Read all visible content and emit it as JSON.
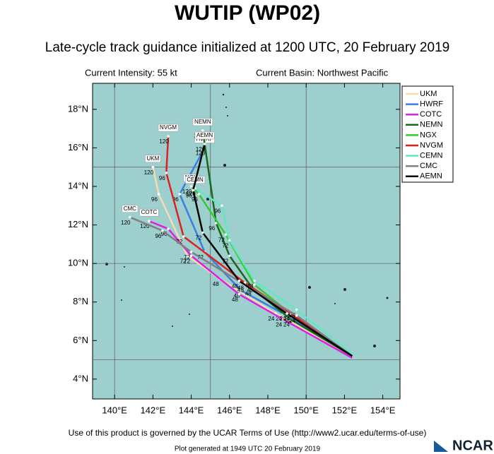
{
  "chart_data": {
    "type": "track",
    "title": "WUTIP (WP02)",
    "subtitle": "Late-cycle track guidance initialized at 1200 UTC, 20 February 2019",
    "current_intensity": "Current Intensity: 55 kt",
    "current_basin": "Current Basin: Northwest Pacific",
    "footer": "Use of this product is governed by the UCAR Terms of Use (http://www2.ucar.edu/terms-of-use)",
    "generated": "Plot generated at 1949 UTC  20 February 2019",
    "logo": "NCAR",
    "xlim": [
      138.85,
      154.9
    ],
    "ylim": [
      2.97,
      19.35
    ],
    "xticks": [
      {
        "value": 140,
        "label": "140°E"
      },
      {
        "value": 142,
        "label": "142°E"
      },
      {
        "value": 144,
        "label": "144°E"
      },
      {
        "value": 146,
        "label": "146°E"
      },
      {
        "value": 148,
        "label": "148°E"
      },
      {
        "value": 150,
        "label": "150°E"
      },
      {
        "value": 152,
        "label": "152°E"
      },
      {
        "value": 154,
        "label": "154°E"
      }
    ],
    "yticks": [
      {
        "value": 4,
        "label": "4°N"
      },
      {
        "value": 6,
        "label": "6°N"
      },
      {
        "value": 8,
        "label": "8°N"
      },
      {
        "value": 10,
        "label": "10°N"
      },
      {
        "value": 12,
        "label": "12°N"
      },
      {
        "value": 14,
        "label": "14°N"
      },
      {
        "value": 16,
        "label": "16°N"
      },
      {
        "value": 18,
        "label": "18°N"
      }
    ],
    "xgrid": [
      140,
      145,
      150
    ],
    "ygrid": [
      5,
      10,
      15
    ],
    "hours": [
      24,
      48,
      72,
      96,
      120
    ],
    "series": [
      {
        "name": "UKM",
        "color": "#f2dcb0",
        "x": [
          152.4,
          148.4,
          145.5,
          143.8,
          142.3,
          142.0
        ],
        "values": [
          5.2,
          7.4,
          9.2,
          10.4,
          13.6,
          15.0
        ]
      },
      {
        "name": "HWRF",
        "color": "#3a80e0",
        "x": [
          152.4,
          148.8,
          146.6,
          144.7,
          143.4,
          144.7
        ],
        "values": [
          5.2,
          7.4,
          8.6,
          10.6,
          13.6,
          16.0
        ]
      },
      {
        "name": "COTC",
        "color": "#e020e0",
        "x": [
          152.4,
          148.8,
          146.5,
          144.0,
          142.8,
          141.8
        ],
        "values": [
          5.1,
          7.1,
          8.4,
          10.4,
          11.8,
          12.2
        ]
      },
      {
        "name": "NEMN",
        "color": "#1a661a",
        "x": [
          152.4,
          149.2,
          147.2,
          146.0,
          145.3,
          144.6
        ],
        "values": [
          5.2,
          7.1,
          8.7,
          10.4,
          12.1,
          16.9
        ]
      },
      {
        "name": "NGX",
        "color": "#33cc33",
        "x": [
          152.4,
          149.3,
          147.3,
          145.8,
          144.4,
          144.0
        ],
        "values": [
          5.2,
          7.3,
          8.9,
          11.5,
          13.6,
          14.0
        ]
      },
      {
        "name": "NVGM",
        "color": "#e02020",
        "x": [
          152.4,
          149.2,
          146.8,
          143.6,
          142.7,
          142.8
        ],
        "values": [
          5.2,
          7.4,
          9.0,
          11.4,
          14.7,
          16.6
        ]
      },
      {
        "name": "CEMN",
        "color": "#66e6c0",
        "x": [
          152.4,
          149.5,
          147.3,
          146.0,
          145.6,
          144.2
        ],
        "values": [
          5.3,
          7.6,
          9.1,
          11.2,
          13.0,
          13.9
        ]
      },
      {
        "name": "CMC",
        "color": "#808080",
        "x": [
          152.4,
          149.5,
          146.8,
          144.0,
          142.5,
          140.8
        ],
        "values": [
          5.2,
          7.3,
          8.9,
          10.6,
          11.7,
          12.4
        ]
      },
      {
        "name": "AEMN",
        "color": "#000000",
        "x": [
          152.4,
          149.0,
          146.5,
          144.6,
          144.1,
          144.7
        ],
        "values": [
          5.2,
          7.4,
          9.1,
          11.6,
          13.8,
          16.2
        ]
      }
    ]
  }
}
